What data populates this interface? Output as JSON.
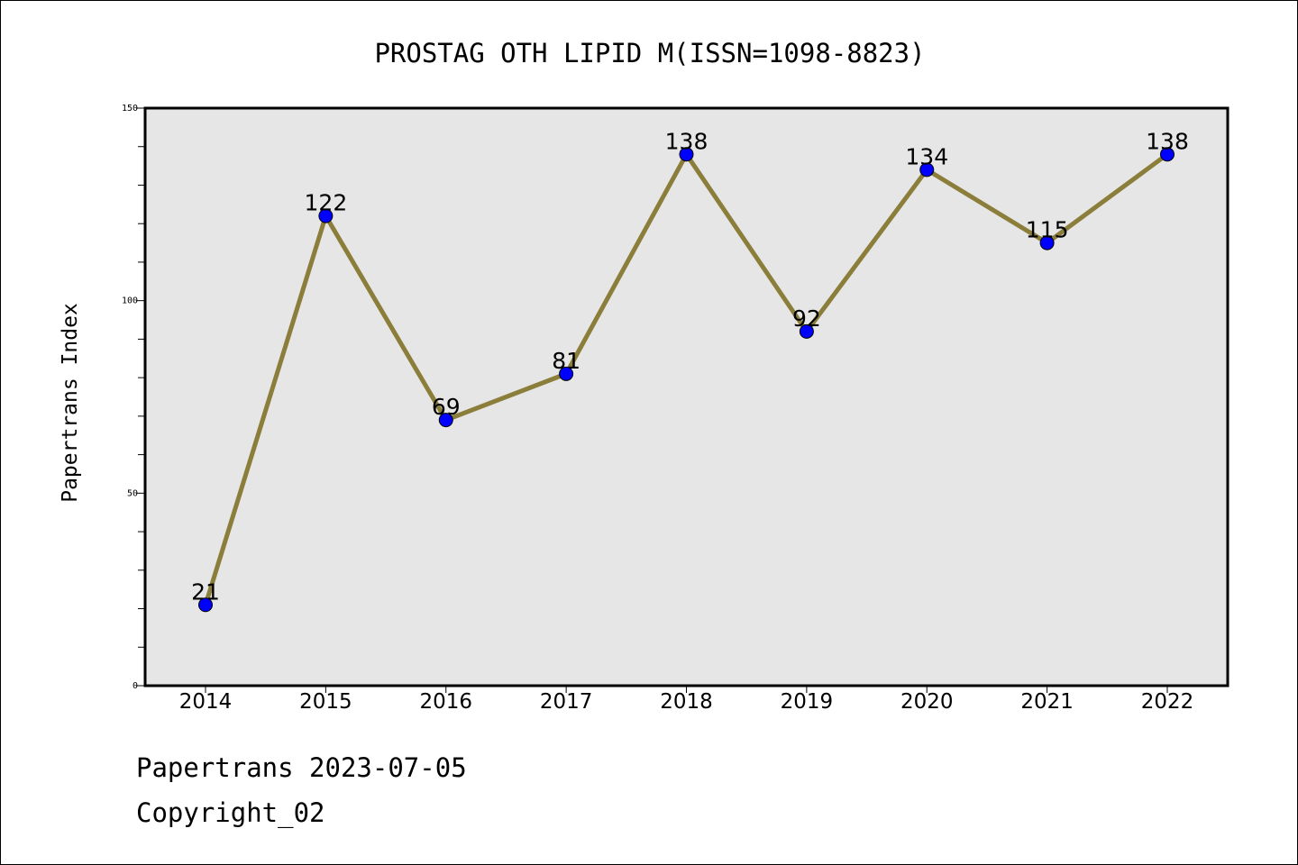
{
  "chart_data": {
    "type": "line",
    "title": "PROSTAG OTH LIPID M(ISSN=1098-8823)",
    "xlabel": "",
    "ylabel": "Papertrans Index",
    "categories": [
      "2014",
      "2015",
      "2016",
      "2017",
      "2018",
      "2019",
      "2020",
      "2021",
      "2022"
    ],
    "series": [
      {
        "values": [
          21,
          122,
          69,
          81,
          138,
          92,
          134,
          115,
          138
        ]
      }
    ],
    "data_labels": [
      "21",
      "122",
      "69",
      "81",
      "138",
      "92",
      "134",
      "115",
      "138"
    ],
    "ylim": [
      0,
      150
    ],
    "y_ticks": [
      "0",
      "50",
      "100",
      "150"
    ],
    "y_minor_step": 10,
    "grid": false,
    "legend": "none"
  },
  "colors": {
    "line": "#8b7d3a",
    "marker": "#0000ff",
    "plot_background": "#e6e6e6"
  },
  "footer": {
    "line1": "Papertrans 2023-07-05",
    "line2": "Copyright_02"
  }
}
